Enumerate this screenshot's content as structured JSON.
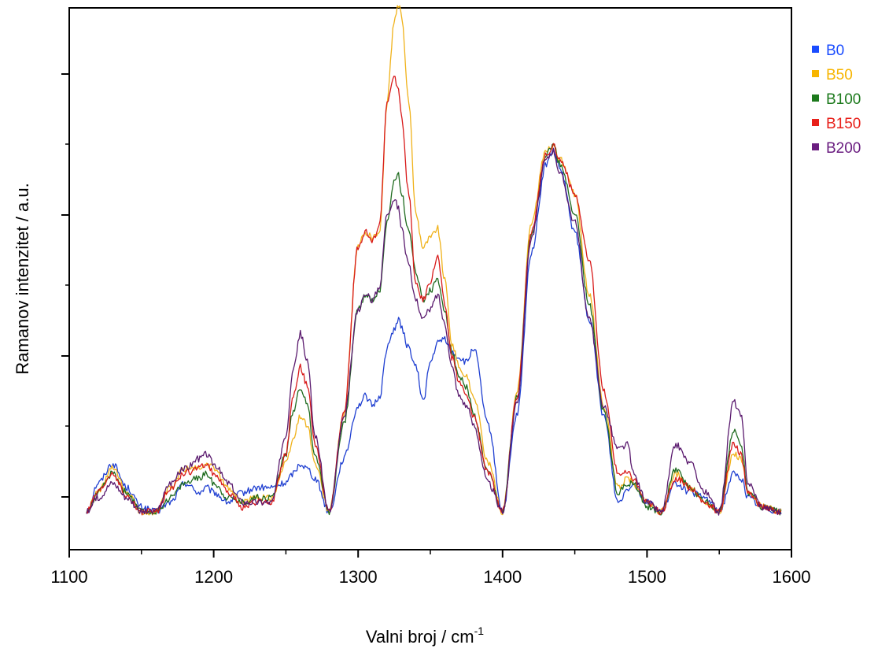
{
  "chart_data": {
    "type": "line",
    "xlabel": "Valni broj / cm",
    "xlabel_superscript": "-1",
    "ylabel": "Ramanov intenzitet / a.u.",
    "xlim": [
      1100,
      1600
    ],
    "ylim": [
      0,
      1.0
    ],
    "x_ticks": [
      1100,
      1200,
      1300,
      1400,
      1500,
      1600
    ],
    "y_tick_labels_shown": false,
    "grid": false,
    "legend_position": "top-right, outside plot",
    "x": [
      1112,
      1120,
      1130,
      1140,
      1150,
      1160,
      1170,
      1180,
      1190,
      1195,
      1200,
      1210,
      1220,
      1230,
      1240,
      1250,
      1255,
      1260,
      1265,
      1270,
      1280,
      1290,
      1300,
      1305,
      1310,
      1315,
      1320,
      1325,
      1328,
      1330,
      1335,
      1340,
      1345,
      1350,
      1355,
      1360,
      1365,
      1370,
      1375,
      1380,
      1390,
      1400,
      1410,
      1420,
      1430,
      1435,
      1440,
      1450,
      1460,
      1470,
      1480,
      1487,
      1490,
      1500,
      1510,
      1520,
      1530,
      1540,
      1550,
      1560,
      1565,
      1570,
      1580,
      1593
    ],
    "series": [
      {
        "name": "B0",
        "color": "#1f3fd1",
        "legend_color": "#1a4cff",
        "values": [
          0.0,
          0.06,
          0.1,
          0.05,
          0.01,
          0.0,
          0.02,
          0.06,
          0.04,
          0.05,
          0.04,
          0.02,
          0.04,
          0.05,
          0.05,
          0.06,
          0.08,
          0.1,
          0.09,
          0.07,
          0.0,
          0.11,
          0.22,
          0.24,
          0.22,
          0.24,
          0.34,
          0.38,
          0.4,
          0.38,
          0.34,
          0.3,
          0.23,
          0.31,
          0.35,
          0.36,
          0.33,
          0.32,
          0.31,
          0.34,
          0.18,
          0.0,
          0.2,
          0.54,
          0.72,
          0.75,
          0.71,
          0.58,
          0.4,
          0.2,
          0.02,
          0.05,
          0.06,
          0.02,
          0.0,
          0.06,
          0.04,
          0.03,
          0.0,
          0.08,
          0.07,
          0.03,
          0.01,
          0.0
        ]
      },
      {
        "name": "B50",
        "color": "#f0b21a",
        "legend_color": "#f7b500",
        "values": [
          0.0,
          0.04,
          0.09,
          0.04,
          0.0,
          0.0,
          0.05,
          0.09,
          0.09,
          0.1,
          0.09,
          0.05,
          0.02,
          0.03,
          0.03,
          0.1,
          0.15,
          0.2,
          0.18,
          0.1,
          0.0,
          0.2,
          0.55,
          0.58,
          0.57,
          0.58,
          0.85,
          1.02,
          1.05,
          1.03,
          0.85,
          0.62,
          0.55,
          0.57,
          0.59,
          0.48,
          0.35,
          0.3,
          0.28,
          0.24,
          0.1,
          0.0,
          0.25,
          0.6,
          0.75,
          0.76,
          0.73,
          0.66,
          0.45,
          0.22,
          0.05,
          0.07,
          0.06,
          0.02,
          0.0,
          0.08,
          0.05,
          0.02,
          0.0,
          0.12,
          0.11,
          0.04,
          0.01,
          0.0
        ]
      },
      {
        "name": "B100",
        "color": "#1f6b1f",
        "legend_color": "#1d7a1d",
        "values": [
          0.0,
          0.04,
          0.08,
          0.04,
          0.0,
          0.0,
          0.03,
          0.06,
          0.07,
          0.08,
          0.06,
          0.03,
          0.02,
          0.03,
          0.03,
          0.12,
          0.21,
          0.26,
          0.22,
          0.12,
          0.0,
          0.18,
          0.42,
          0.45,
          0.44,
          0.46,
          0.6,
          0.69,
          0.7,
          0.66,
          0.58,
          0.5,
          0.44,
          0.46,
          0.48,
          0.42,
          0.33,
          0.28,
          0.26,
          0.2,
          0.08,
          0.0,
          0.24,
          0.58,
          0.74,
          0.76,
          0.72,
          0.62,
          0.43,
          0.21,
          0.04,
          0.06,
          0.06,
          0.01,
          0.0,
          0.09,
          0.05,
          0.02,
          0.0,
          0.17,
          0.14,
          0.04,
          0.01,
          0.0
        ]
      },
      {
        "name": "B150",
        "color": "#d81a1a",
        "legend_color": "#e8201a",
        "values": [
          0.0,
          0.04,
          0.08,
          0.03,
          0.0,
          0.0,
          0.05,
          0.08,
          0.09,
          0.1,
          0.08,
          0.04,
          0.01,
          0.02,
          0.02,
          0.12,
          0.24,
          0.3,
          0.26,
          0.14,
          0.0,
          0.2,
          0.55,
          0.58,
          0.56,
          0.6,
          0.85,
          0.9,
          0.88,
          0.82,
          0.66,
          0.47,
          0.44,
          0.48,
          0.53,
          0.43,
          0.32,
          0.27,
          0.24,
          0.2,
          0.08,
          0.0,
          0.24,
          0.58,
          0.74,
          0.76,
          0.73,
          0.66,
          0.52,
          0.25,
          0.08,
          0.08,
          0.07,
          0.02,
          0.0,
          0.07,
          0.05,
          0.02,
          0.0,
          0.14,
          0.12,
          0.04,
          0.01,
          0.0
        ]
      },
      {
        "name": "B200",
        "color": "#5a1a6e",
        "legend_color": "#6a1d80",
        "values": [
          0.0,
          0.03,
          0.06,
          0.03,
          0.0,
          0.0,
          0.06,
          0.09,
          0.11,
          0.12,
          0.1,
          0.06,
          0.02,
          0.02,
          0.02,
          0.16,
          0.3,
          0.37,
          0.31,
          0.16,
          0.0,
          0.19,
          0.42,
          0.45,
          0.44,
          0.47,
          0.62,
          0.65,
          0.63,
          0.59,
          0.51,
          0.44,
          0.4,
          0.42,
          0.45,
          0.39,
          0.3,
          0.24,
          0.22,
          0.18,
          0.06,
          0.0,
          0.23,
          0.57,
          0.73,
          0.75,
          0.7,
          0.6,
          0.4,
          0.22,
          0.13,
          0.14,
          0.08,
          0.02,
          0.0,
          0.14,
          0.1,
          0.04,
          0.0,
          0.23,
          0.2,
          0.06,
          0.01,
          0.0
        ]
      }
    ]
  }
}
